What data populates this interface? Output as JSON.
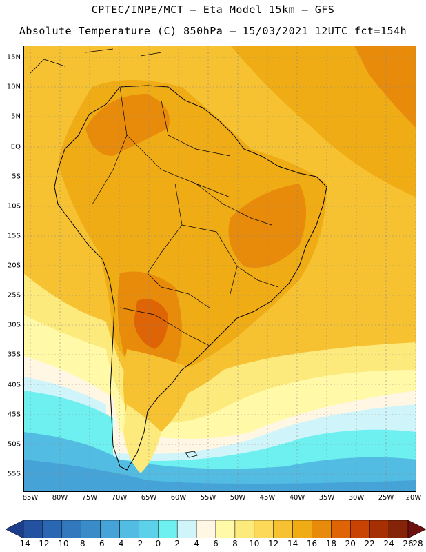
{
  "header": {
    "line1": "CPTEC/INPE/MCT –  Eta Model 15km – GFS",
    "line2": "Absolute Temperature (C) 850hPa – 15/03/2021 12UTC fct=154h"
  },
  "lat_labels": [
    "15N",
    "10N",
    "5N",
    "EQ",
    "5S",
    "10S",
    "15S",
    "20S",
    "25S",
    "30S",
    "35S",
    "40S",
    "45S",
    "50S",
    "55S"
  ],
  "lon_labels": [
    "85W",
    "80W",
    "75W",
    "70W",
    "65W",
    "60W",
    "55W",
    "50W",
    "45W",
    "40W",
    "35W",
    "30W",
    "25W",
    "20W"
  ],
  "map_extent": {
    "lon": [
      -85,
      -20
    ],
    "lat": [
      -58.5,
      16.5
    ]
  },
  "colorbar": {
    "labels": [
      "-14",
      "-12",
      "-10",
      "-8",
      "-6",
      "-4",
      "-2",
      "0",
      "2",
      "4",
      "6",
      "8",
      "10",
      "12",
      "14",
      "16",
      "18",
      "20",
      "22",
      "24",
      "26",
      "28"
    ],
    "colors": [
      "#1c3c8c",
      "#2452a0",
      "#2a67b2",
      "#3178bd",
      "#3a8cc8",
      "#45a3d8",
      "#52bce3",
      "#5dd1ea",
      "#6ff0f0",
      "#cff5fb",
      "#fff7e3",
      "#fff9a8",
      "#fdea7d",
      "#fcd958",
      "#f6c232",
      "#f0ac14",
      "#e88a0a",
      "#df6406",
      "#c94404",
      "#a63004",
      "#852408",
      "#6e0f10"
    ]
  },
  "field_colors": {
    "cold_deep": "#45a3d8",
    "cold": "#52bce3",
    "cool": "#6ff0f0",
    "cyan_light": "#cff5fb",
    "cream": "#fff7e3",
    "pale_yellow": "#fff9a8",
    "yellow": "#fdea7d",
    "yellow_orange": "#f6c232",
    "orange": "#f0ac14",
    "orange_dark": "#e88a0a",
    "red_orange": "#df6406"
  }
}
